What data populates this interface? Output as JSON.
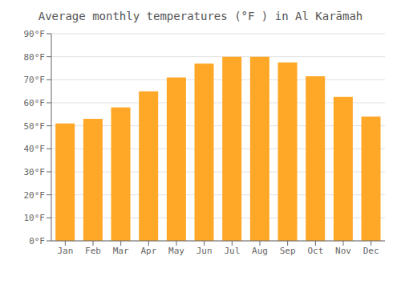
{
  "chart_data": {
    "type": "bar",
    "title": "Average monthly temperatures (°F ) in Al Karāmah",
    "categories": [
      "Jan",
      "Feb",
      "Mar",
      "Apr",
      "May",
      "Jun",
      "Jul",
      "Aug",
      "Sep",
      "Oct",
      "Nov",
      "Dec"
    ],
    "values": [
      51,
      53,
      58,
      65,
      71,
      77,
      80,
      80,
      77.5,
      71.5,
      62.5,
      54
    ],
    "color": "#FFA726",
    "ylim": [
      0,
      90
    ],
    "yticks": [
      {
        "value": 0,
        "label": "0°F"
      },
      {
        "value": 10,
        "label": "10°F"
      },
      {
        "value": 20,
        "label": "20°F"
      },
      {
        "value": 30,
        "label": "30°F"
      },
      {
        "value": 40,
        "label": "40°F"
      },
      {
        "value": 50,
        "label": "50°F"
      },
      {
        "value": 60,
        "label": "60°F"
      },
      {
        "value": 70,
        "label": "70°F"
      },
      {
        "value": 80,
        "label": "80°F"
      },
      {
        "value": 90,
        "label": "90°F"
      }
    ],
    "grid": true
  }
}
